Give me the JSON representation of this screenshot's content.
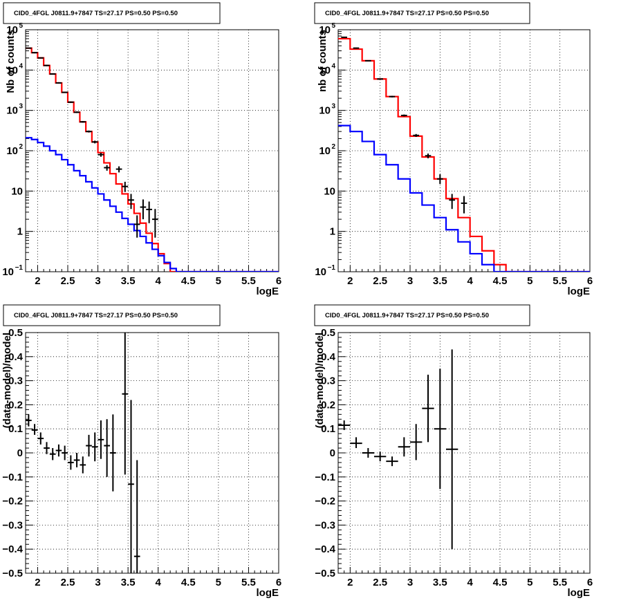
{
  "chart_data": [
    {
      "id": "p1",
      "type": "line",
      "title": "CID0_4FGL J0811.9+7847 TS=27.17 PS=0.50 PS=0.50",
      "xlabel": "logE",
      "ylabel": "Nb of counts",
      "xlim": [
        1.8,
        6.0
      ],
      "ylim": [
        0.1,
        100000
      ],
      "log_y": true,
      "grid": true,
      "xticks": [
        2,
        2.5,
        3,
        3.5,
        4,
        4.5,
        5,
        5.5,
        6
      ],
      "xtick_labels": [
        "2",
        "2.5",
        "3",
        "3.5",
        "4",
        "4.5",
        "5",
        "5.5",
        "6"
      ],
      "yticks": [
        0.1,
        1,
        10,
        100,
        1000,
        10000,
        100000
      ],
      "ytick_labels": [
        [
          "10",
          "−1"
        ],
        [
          "1",
          ""
        ],
        [
          "10",
          ""
        ],
        [
          "10",
          "2"
        ],
        [
          "10",
          "3"
        ],
        [
          "10",
          "4"
        ],
        [
          "10",
          "5"
        ]
      ],
      "series": [
        {
          "color": "#ff0000",
          "style": "step",
          "edges": [
            1.8,
            1.9,
            2.0,
            2.1,
            2.2,
            2.3,
            2.4,
            2.5,
            2.6,
            2.7,
            2.8,
            2.9,
            3.0,
            3.1,
            3.2,
            3.3,
            3.4,
            3.5,
            3.6,
            3.7,
            3.8,
            3.9,
            4.0,
            4.1,
            4.2,
            4.3,
            4.4,
            4.5,
            6.0
          ],
          "values": [
            35000,
            27000,
            20000,
            13000,
            8000,
            4800,
            2800,
            1600,
            900,
            520,
            300,
            165,
            90,
            50,
            27,
            15,
            8.5,
            4.8,
            2.8,
            1.6,
            0.9,
            0.5,
            0.28,
            0.16,
            0.1,
            0.1,
            0.1,
            0.1
          ]
        },
        {
          "color": "#0000ff",
          "style": "step",
          "edges": [
            1.8,
            1.9,
            2.0,
            2.1,
            2.2,
            2.3,
            2.4,
            2.5,
            2.6,
            2.7,
            2.8,
            2.9,
            3.0,
            3.1,
            3.2,
            3.3,
            3.4,
            3.5,
            3.6,
            3.7,
            3.8,
            3.9,
            4.0,
            4.1,
            4.2,
            4.3,
            6.0
          ],
          "values": [
            210,
            190,
            160,
            130,
            100,
            80,
            60,
            45,
            32,
            24,
            17,
            12,
            8.5,
            6,
            4.2,
            3,
            2.1,
            1.5,
            1.05,
            0.75,
            0.52,
            0.36,
            0.25,
            0.17,
            0.12,
            0.1
          ]
        },
        {
          "color": "#000000",
          "style": "points",
          "points": [
            {
              "x": 1.85,
              "y": 35000,
              "lo": 34000,
              "hi": 36000
            },
            {
              "x": 1.95,
              "y": 27000,
              "lo": 26000,
              "hi": 28000
            },
            {
              "x": 2.05,
              "y": 20000,
              "lo": 19500,
              "hi": 20500
            },
            {
              "x": 2.15,
              "y": 13000,
              "lo": 12500,
              "hi": 13500
            },
            {
              "x": 2.25,
              "y": 8000,
              "lo": 7700,
              "hi": 8300
            },
            {
              "x": 2.35,
              "y": 4800,
              "lo": 4600,
              "hi": 5000
            },
            {
              "x": 2.45,
              "y": 2800,
              "lo": 2700,
              "hi": 2900
            },
            {
              "x": 2.55,
              "y": 1600,
              "lo": 1530,
              "hi": 1670
            },
            {
              "x": 2.65,
              "y": 900,
              "lo": 860,
              "hi": 940
            },
            {
              "x": 2.75,
              "y": 520,
              "lo": 495,
              "hi": 545
            },
            {
              "x": 2.85,
              "y": 300,
              "lo": 283,
              "hi": 317
            },
            {
              "x": 2.95,
              "y": 165,
              "lo": 152,
              "hi": 178
            },
            {
              "x": 3.05,
              "y": 80,
              "lo": 71,
              "hi": 89
            },
            {
              "x": 3.15,
              "y": 38,
              "lo": 32,
              "hi": 44
            },
            {
              "x": 3.35,
              "y": 35,
              "lo": 29,
              "hi": 41
            },
            {
              "x": 3.45,
              "y": 13,
              "lo": 9.5,
              "hi": 17
            },
            {
              "x": 3.55,
              "y": 6,
              "lo": 3.6,
              "hi": 8.5
            },
            {
              "x": 3.65,
              "y": 1.5,
              "lo": 0.7,
              "hi": 2.5
            },
            {
              "x": 3.75,
              "y": 4,
              "lo": 2.0,
              "hi": 6.2
            },
            {
              "x": 3.85,
              "y": 3.5,
              "lo": 1.6,
              "hi": 5.5
            },
            {
              "x": 3.95,
              "y": 2,
              "lo": 0.7,
              "hi": 3.6
            }
          ]
        }
      ]
    },
    {
      "id": "p2",
      "type": "line",
      "title": "CID0_4FGL J0811.9+7847 TS=27.17 PS=0.50 PS=0.50",
      "xlabel": "logE",
      "ylabel": "nb of counts",
      "xlim": [
        1.8,
        6.0
      ],
      "ylim": [
        0.1,
        100000
      ],
      "log_y": true,
      "grid": true,
      "xticks": [
        2,
        2.5,
        3,
        3.5,
        4,
        4.5,
        5,
        5.5,
        6
      ],
      "xtick_labels": [
        "2",
        "2.5",
        "3",
        "3.5",
        "4",
        "4.5",
        "5",
        "5.5",
        "6"
      ],
      "yticks": [
        0.1,
        1,
        10,
        100,
        1000,
        10000,
        100000
      ],
      "ytick_labels": [
        [
          "10",
          "−1"
        ],
        [
          "1",
          ""
        ],
        [
          "10",
          ""
        ],
        [
          "10",
          "2"
        ],
        [
          "10",
          "3"
        ],
        [
          "10",
          "4"
        ],
        [
          "10",
          "5"
        ]
      ],
      "series": [
        {
          "color": "#ff0000",
          "style": "step",
          "edges": [
            1.8,
            2.0,
            2.2,
            2.4,
            2.6,
            2.8,
            3.0,
            3.2,
            3.4,
            3.6,
            3.8,
            4.0,
            4.2,
            4.4,
            4.6,
            6.0
          ],
          "values": [
            60000,
            33000,
            17000,
            6000,
            2200,
            700,
            230,
            70,
            20,
            6.5,
            2.2,
            0.75,
            0.33,
            0.15,
            0.1
          ]
        },
        {
          "color": "#0000ff",
          "style": "step",
          "edges": [
            1.8,
            2.0,
            2.2,
            2.4,
            2.6,
            2.8,
            3.0,
            3.2,
            3.4,
            3.6,
            3.8,
            4.0,
            4.2,
            4.4,
            6.0
          ],
          "values": [
            420,
            300,
            170,
            80,
            45,
            20,
            9,
            4.5,
            2.2,
            1.1,
            0.55,
            0.28,
            0.15,
            0.1
          ]
        },
        {
          "color": "#000000",
          "style": "points",
          "points": [
            {
              "x": 1.9,
              "y": 65000,
              "lo": 63000,
              "hi": 67000
            },
            {
              "x": 2.1,
              "y": 35000,
              "lo": 34000,
              "hi": 36000
            },
            {
              "x": 2.3,
              "y": 17000,
              "lo": 16500,
              "hi": 17500
            },
            {
              "x": 2.5,
              "y": 6000,
              "lo": 5800,
              "hi": 6200
            },
            {
              "x": 2.7,
              "y": 2200,
              "lo": 2100,
              "hi": 2300
            },
            {
              "x": 2.9,
              "y": 750,
              "lo": 710,
              "hi": 790
            },
            {
              "x": 3.1,
              "y": 240,
              "lo": 220,
              "hi": 260
            },
            {
              "x": 3.3,
              "y": 75,
              "lo": 65,
              "hi": 85
            },
            {
              "x": 3.5,
              "y": 20,
              "lo": 15,
              "hi": 26
            },
            {
              "x": 3.7,
              "y": 6,
              "lo": 3.6,
              "hi": 8.5
            },
            {
              "x": 3.9,
              "y": 5,
              "lo": 2.8,
              "hi": 7.5
            }
          ]
        }
      ]
    },
    {
      "id": "p3",
      "type": "scatter",
      "title": "CID0_4FGL J0811.9+7847 TS=27.17 PS=0.50 PS=0.50",
      "xlabel": "logE",
      "ylabel": "(data-model)/model",
      "xlim": [
        1.8,
        6.0
      ],
      "ylim": [
        -0.5,
        0.5
      ],
      "log_y": false,
      "grid": true,
      "xticks": [
        2,
        2.5,
        3,
        3.5,
        4,
        4.5,
        5,
        5.5,
        6
      ],
      "xtick_labels": [
        "2",
        "2.5",
        "3",
        "3.5",
        "4",
        "4.5",
        "5",
        "5.5",
        "6"
      ],
      "yticks": [
        -0.5,
        -0.4,
        -0.3,
        -0.2,
        -0.1,
        0,
        0.1,
        0.2,
        0.3,
        0.4,
        0.5
      ],
      "ytick_labels": [
        [
          "−0.5",
          ""
        ],
        [
          "−0.4",
          ""
        ],
        [
          "−0.3",
          ""
        ],
        [
          "−0.2",
          ""
        ],
        [
          "−0.1",
          ""
        ],
        [
          "0",
          ""
        ],
        [
          "0.1",
          ""
        ],
        [
          "0.2",
          ""
        ],
        [
          "0.3",
          ""
        ],
        [
          "0.4",
          ""
        ],
        [
          "0.5",
          ""
        ]
      ],
      "series": [
        {
          "color": "#000000",
          "style": "points",
          "half_width": 0.05,
          "points": [
            {
              "x": 1.85,
              "y": 0.135,
              "lo": 0.11,
              "hi": 0.16
            },
            {
              "x": 1.95,
              "y": 0.095,
              "lo": 0.075,
              "hi": 0.12
            },
            {
              "x": 2.05,
              "y": 0.06,
              "lo": 0.035,
              "hi": 0.085
            },
            {
              "x": 2.15,
              "y": 0.02,
              "lo": -0.005,
              "hi": 0.045
            },
            {
              "x": 2.25,
              "y": -0.005,
              "lo": -0.03,
              "hi": 0.02
            },
            {
              "x": 2.35,
              "y": 0.01,
              "lo": -0.015,
              "hi": 0.035
            },
            {
              "x": 2.45,
              "y": 0.0,
              "lo": -0.03,
              "hi": 0.03
            },
            {
              "x": 2.55,
              "y": -0.04,
              "lo": -0.07,
              "hi": -0.01
            },
            {
              "x": 2.65,
              "y": -0.03,
              "lo": -0.06,
              "hi": 0.0
            },
            {
              "x": 2.75,
              "y": -0.05,
              "lo": -0.085,
              "hi": -0.015
            },
            {
              "x": 2.85,
              "y": 0.03,
              "lo": -0.015,
              "hi": 0.075
            },
            {
              "x": 2.95,
              "y": 0.025,
              "lo": -0.035,
              "hi": 0.085
            },
            {
              "x": 3.05,
              "y": 0.055,
              "lo": -0.025,
              "hi": 0.135
            },
            {
              "x": 3.15,
              "y": 0.03,
              "lo": -0.1,
              "hi": 0.14
            },
            {
              "x": 3.25,
              "y": 0.0,
              "lo": -0.16,
              "hi": 0.16
            },
            {
              "x": 3.45,
              "y": 0.245,
              "lo": -0.09,
              "hi": 0.5
            },
            {
              "x": 3.55,
              "y": -0.13,
              "lo": -0.5,
              "hi": 0.22
            },
            {
              "x": 3.65,
              "y": -0.43,
              "lo": -0.5,
              "hi": -0.03
            }
          ]
        }
      ]
    },
    {
      "id": "p4",
      "type": "scatter",
      "title": "CID0_4FGL J0811.9+7847 TS=27.17 PS=0.50 PS=0.50",
      "xlabel": "logE",
      "ylabel": "(data-model)/model",
      "xlim": [
        1.8,
        6.0
      ],
      "ylim": [
        -0.5,
        0.5
      ],
      "log_y": false,
      "grid": true,
      "xticks": [
        2,
        2.5,
        3,
        3.5,
        4,
        4.5,
        5,
        5.5,
        6
      ],
      "xtick_labels": [
        "2",
        "2.5",
        "3",
        "3.5",
        "4",
        "4.5",
        "5",
        "5.5",
        "6"
      ],
      "yticks": [
        -0.5,
        -0.4,
        -0.3,
        -0.2,
        -0.1,
        0,
        0.1,
        0.2,
        0.3,
        0.4,
        0.5
      ],
      "ytick_labels": [
        [
          "−0.5",
          ""
        ],
        [
          "−0.4",
          ""
        ],
        [
          "−0.3",
          ""
        ],
        [
          "−0.2",
          ""
        ],
        [
          "−0.1",
          ""
        ],
        [
          "0",
          ""
        ],
        [
          "0.1",
          ""
        ],
        [
          "0.2",
          ""
        ],
        [
          "0.3",
          ""
        ],
        [
          "0.4",
          ""
        ],
        [
          "0.5",
          ""
        ]
      ],
      "series": [
        {
          "color": "#000000",
          "style": "points",
          "half_width": 0.1,
          "points": [
            {
              "x": 1.9,
              "y": 0.115,
              "lo": 0.095,
              "hi": 0.135
            },
            {
              "x": 2.1,
              "y": 0.04,
              "lo": 0.02,
              "hi": 0.065
            },
            {
              "x": 2.3,
              "y": 0.0,
              "lo": -0.02,
              "hi": 0.02
            },
            {
              "x": 2.5,
              "y": -0.015,
              "lo": -0.035,
              "hi": 0.005
            },
            {
              "x": 2.7,
              "y": -0.035,
              "lo": -0.055,
              "hi": -0.015
            },
            {
              "x": 2.9,
              "y": 0.025,
              "lo": -0.015,
              "hi": 0.065
            },
            {
              "x": 3.1,
              "y": 0.045,
              "lo": -0.03,
              "hi": 0.12
            },
            {
              "x": 3.3,
              "y": 0.185,
              "lo": 0.045,
              "hi": 0.325
            },
            {
              "x": 3.5,
              "y": 0.1,
              "lo": -0.15,
              "hi": 0.35
            },
            {
              "x": 3.7,
              "y": 0.015,
              "lo": -0.4,
              "hi": 0.43
            }
          ]
        }
      ]
    }
  ]
}
